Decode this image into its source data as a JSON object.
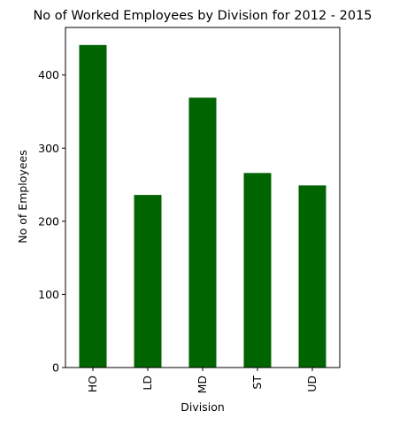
{
  "chart_data": {
    "type": "bar",
    "title": "No of Worked Employees by Division for 2012 - 2015",
    "xlabel": "Division",
    "ylabel": "No of Employees",
    "categories": [
      "HO",
      "LD",
      "MD",
      "ST",
      "UD"
    ],
    "values": [
      441,
      236,
      369,
      266,
      249
    ],
    "ylim": [
      0,
      465
    ],
    "yticks": [
      0,
      100,
      200,
      300,
      400
    ],
    "bar_color": "#006400",
    "grid": false,
    "legend": "none"
  }
}
